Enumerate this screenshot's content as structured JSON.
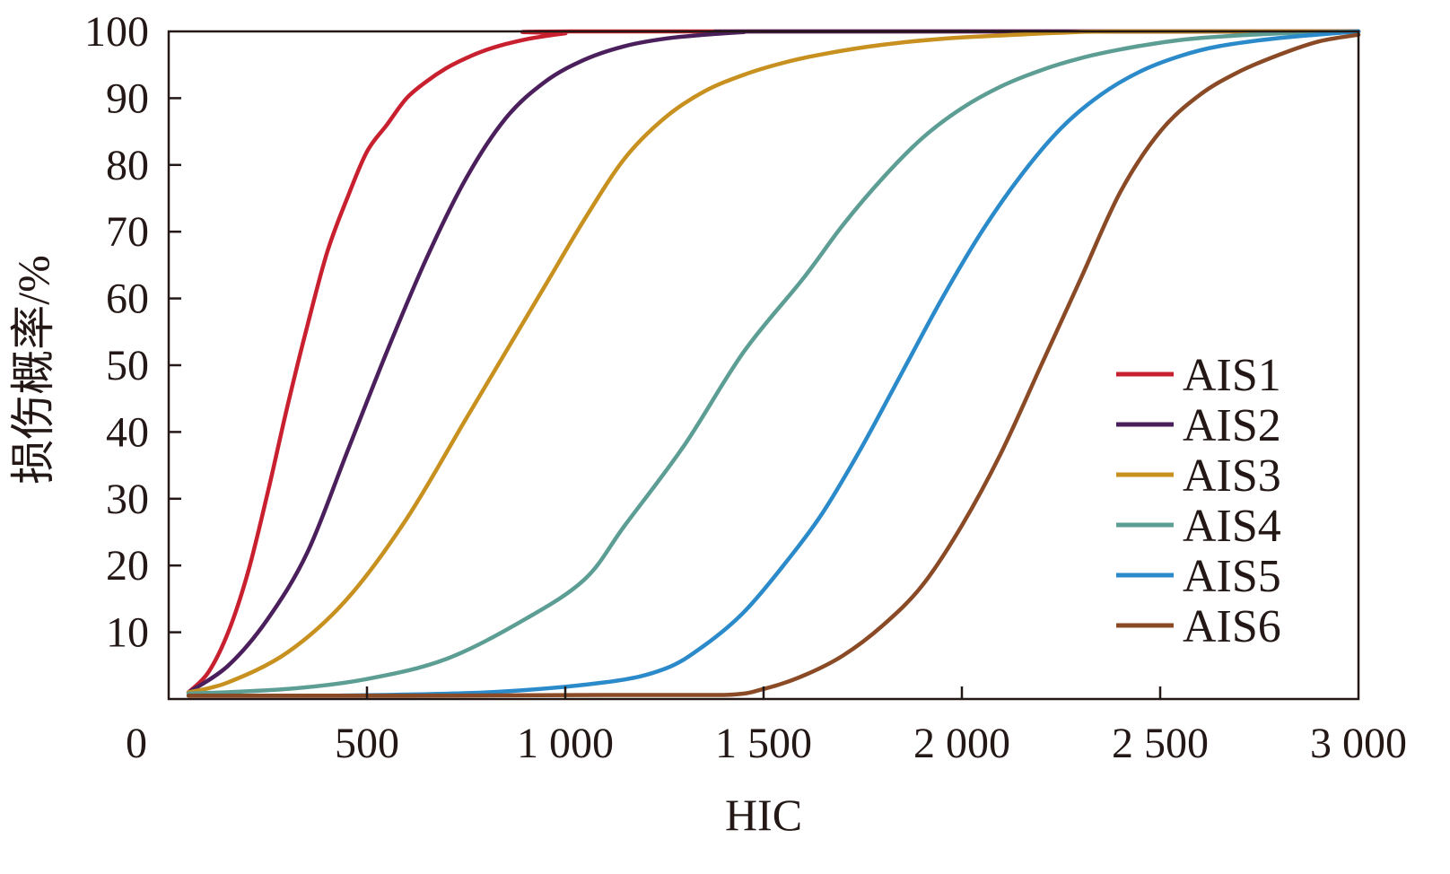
{
  "chart_data": {
    "type": "line",
    "title": "",
    "xlabel": "HIC",
    "ylabel": "损伤概率/%",
    "xlim": [
      0,
      3000
    ],
    "ylim": [
      0,
      100
    ],
    "grid": false,
    "legend_position": "right",
    "x_ticks": [
      {
        "value": 0,
        "label": "0"
      },
      {
        "value": 500,
        "label": "500"
      },
      {
        "value": 1000,
        "label": "1 000"
      },
      {
        "value": 1500,
        "label": "1 500"
      },
      {
        "value": 2000,
        "label": "2 000"
      },
      {
        "value": 2500,
        "label": "2 500"
      },
      {
        "value": 3000,
        "label": "3 000"
      }
    ],
    "y_ticks": [
      {
        "value": 10,
        "label": "10"
      },
      {
        "value": 20,
        "label": "20"
      },
      {
        "value": 30,
        "label": "30"
      },
      {
        "value": 40,
        "label": "40"
      },
      {
        "value": 50,
        "label": "50"
      },
      {
        "value": 60,
        "label": "60"
      },
      {
        "value": 70,
        "label": "70"
      },
      {
        "value": 80,
        "label": "80"
      },
      {
        "value": 90,
        "label": "90"
      },
      {
        "value": 100,
        "label": "100"
      }
    ],
    "series": [
      {
        "name": "AIS1",
        "color": "#c8202f",
        "x": [
          50,
          100,
          150,
          200,
          250,
          300,
          350,
          400,
          450,
          500,
          550,
          600,
          650,
          700,
          750,
          800,
          850,
          900,
          950,
          1000,
          1050,
          3000
        ],
        "y": [
          1,
          4,
          10,
          19,
          31,
          44,
          56,
          67,
          75,
          82,
          86,
          90,
          92.5,
          94.5,
          96,
          97.2,
          98.1,
          98.8,
          99.3,
          99.7,
          100,
          100
        ]
      },
      {
        "name": "AIS2",
        "color": "#4b1f5c",
        "x": [
          50,
          150,
          250,
          350,
          450,
          550,
          650,
          750,
          850,
          950,
          1050,
          1150,
          1250,
          1350,
          1450,
          1500,
          3000
        ],
        "y": [
          1,
          5,
          12,
          22,
          37,
          52,
          66,
          78,
          87,
          92.5,
          95.8,
          97.8,
          98.9,
          99.5,
          99.9,
          100,
          100
        ]
      },
      {
        "name": "AIS3",
        "color": "#c8901e",
        "x": [
          50,
          150,
          300,
          450,
          600,
          750,
          850,
          950,
          1050,
          1150,
          1250,
          1350,
          1450,
          1550,
          1650,
          1800,
          1950,
          2100,
          2250,
          2400,
          3000
        ],
        "y": [
          1,
          2.5,
          7,
          15,
          27,
          42,
          52,
          62,
          72,
          81,
          87,
          91,
          93.5,
          95.3,
          96.6,
          98,
          98.9,
          99.4,
          99.8,
          100,
          100
        ]
      },
      {
        "name": "AIS4",
        "color": "#5d9e94",
        "x": [
          50,
          300,
          500,
          700,
          900,
          1050,
          1150,
          1300,
          1450,
          1600,
          1700,
          1800,
          1900,
          2000,
          2100,
          2200,
          2300,
          2400,
          2500,
          2600,
          2800,
          3000
        ],
        "y": [
          0.8,
          1.5,
          3,
          6,
          12,
          18,
          26,
          38,
          52,
          63,
          71,
          78,
          84,
          88.5,
          91.8,
          94.2,
          96,
          97.3,
          98.3,
          99,
          99.7,
          100
        ]
      },
      {
        "name": "AIS5",
        "color": "#2b8ac9",
        "x": [
          50,
          400,
          800,
          1100,
          1250,
          1350,
          1450,
          1550,
          1650,
          1750,
          1850,
          1950,
          2050,
          2150,
          2250,
          2350,
          2450,
          2550,
          2650,
          2800,
          3000
        ],
        "y": [
          0.5,
          0.5,
          1,
          2.5,
          4.5,
          8,
          13,
          20,
          28,
          38,
          49,
          60,
          70,
          78.5,
          85.5,
          90.5,
          94,
          96.3,
          97.8,
          99,
          100
        ]
      },
      {
        "name": "AIS6",
        "color": "#8a4a26",
        "x": [
          50,
          600,
          1100,
          1400,
          1500,
          1600,
          1700,
          1800,
          1900,
          2000,
          2100,
          2200,
          2300,
          2400,
          2500,
          2600,
          2700,
          2800,
          2900,
          3000
        ],
        "y": [
          0.5,
          0.5,
          0.6,
          0.6,
          1.5,
          3.5,
          6.5,
          11,
          17,
          26,
          37,
          50,
          63,
          76,
          85,
          90.5,
          94,
          96.5,
          98.5,
          99.5
        ]
      }
    ]
  }
}
